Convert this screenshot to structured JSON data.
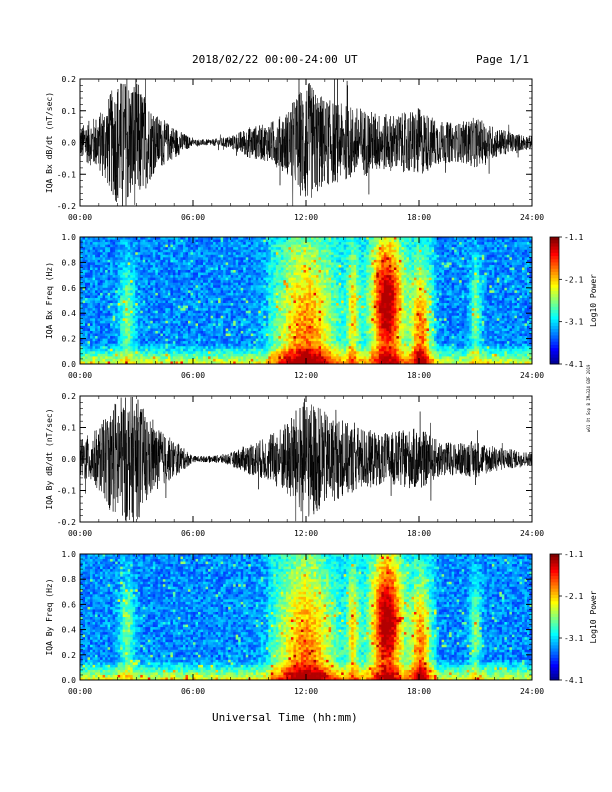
{
  "header": {
    "title": "2018/02/22  00:00-24:00 UT",
    "page": "Page 1/1"
  },
  "xlabel": "Universal Time (hh:mm)",
  "credit": "w01 Ot Sop B IM=324 GDF 2019",
  "colorscale": {
    "min": -4.1,
    "max": -1.1,
    "ticks": [
      "-1.1",
      "-2.1",
      "-3.1",
      "-4.1"
    ],
    "label": "Log10 Power"
  },
  "chart_data": [
    {
      "type": "line",
      "ylabel": "IQA Bx dB/dt (nT/sec)",
      "x_ticks": [
        "00:00",
        "06:00",
        "12:00",
        "18:00",
        "24:00"
      ],
      "y_ticks": [
        "0.2",
        "0.1",
        "0.0",
        "-0.1",
        "-0.2"
      ],
      "xlim_hours": [
        0,
        24
      ],
      "ylim": [
        -0.2,
        0.2
      ],
      "envelope_hours": [
        0,
        1,
        2,
        3,
        4,
        5,
        6,
        7,
        8,
        9,
        10,
        11,
        12,
        13,
        14,
        15,
        16,
        17,
        18,
        19,
        20,
        21,
        22,
        23,
        24
      ],
      "envelope_amplitude": [
        0.05,
        0.09,
        0.2,
        0.2,
        0.09,
        0.05,
        0.01,
        0.01,
        0.02,
        0.05,
        0.06,
        0.1,
        0.2,
        0.14,
        0.12,
        0.11,
        0.09,
        0.09,
        0.11,
        0.07,
        0.06,
        0.08,
        0.05,
        0.03,
        0.02
      ]
    },
    {
      "type": "heatmap",
      "ylabel": "IQA Bx Freq (Hz)",
      "x_ticks": [
        "00:00",
        "06:00",
        "12:00",
        "18:00",
        "24:00"
      ],
      "y_ticks": [
        "1.0",
        "0.8",
        "0.6",
        "0.4",
        "0.2",
        "0.0"
      ],
      "xlim_hours": [
        0,
        24
      ],
      "ylim": [
        0,
        1.0
      ],
      "zlabel": "Log10 Power",
      "zlim": [
        -4.1,
        -1.1
      ]
    },
    {
      "type": "line",
      "ylabel": "IQA By dB/dt (nT/sec)",
      "x_ticks": [
        "00:00",
        "06:00",
        "12:00",
        "18:00",
        "24:00"
      ],
      "y_ticks": [
        "0.2",
        "0.1",
        "0.0",
        "-0.1",
        "-0.2"
      ],
      "xlim_hours": [
        0,
        24
      ],
      "ylim": [
        -0.2,
        0.2
      ],
      "envelope_hours": [
        0,
        1,
        2,
        3,
        4,
        5,
        6,
        7,
        8,
        9,
        10,
        11,
        12,
        13,
        14,
        15,
        16,
        17,
        18,
        19,
        20,
        21,
        22,
        23,
        24
      ],
      "envelope_amplitude": [
        0.06,
        0.1,
        0.2,
        0.2,
        0.1,
        0.06,
        0.01,
        0.01,
        0.02,
        0.05,
        0.07,
        0.12,
        0.2,
        0.15,
        0.12,
        0.1,
        0.08,
        0.09,
        0.1,
        0.06,
        0.05,
        0.06,
        0.04,
        0.03,
        0.02
      ]
    },
    {
      "type": "heatmap",
      "ylabel": "IQA By Freq (Hz)",
      "x_ticks": [
        "00:00",
        "06:00",
        "12:00",
        "18:00",
        "24:00"
      ],
      "y_ticks": [
        "1.0",
        "0.8",
        "0.6",
        "0.4",
        "0.2",
        "0.0"
      ],
      "xlim_hours": [
        0,
        24
      ],
      "ylim": [
        0,
        1.0
      ],
      "zlabel": "Log10 Power",
      "zlim": [
        -4.1,
        -1.1
      ]
    }
  ]
}
